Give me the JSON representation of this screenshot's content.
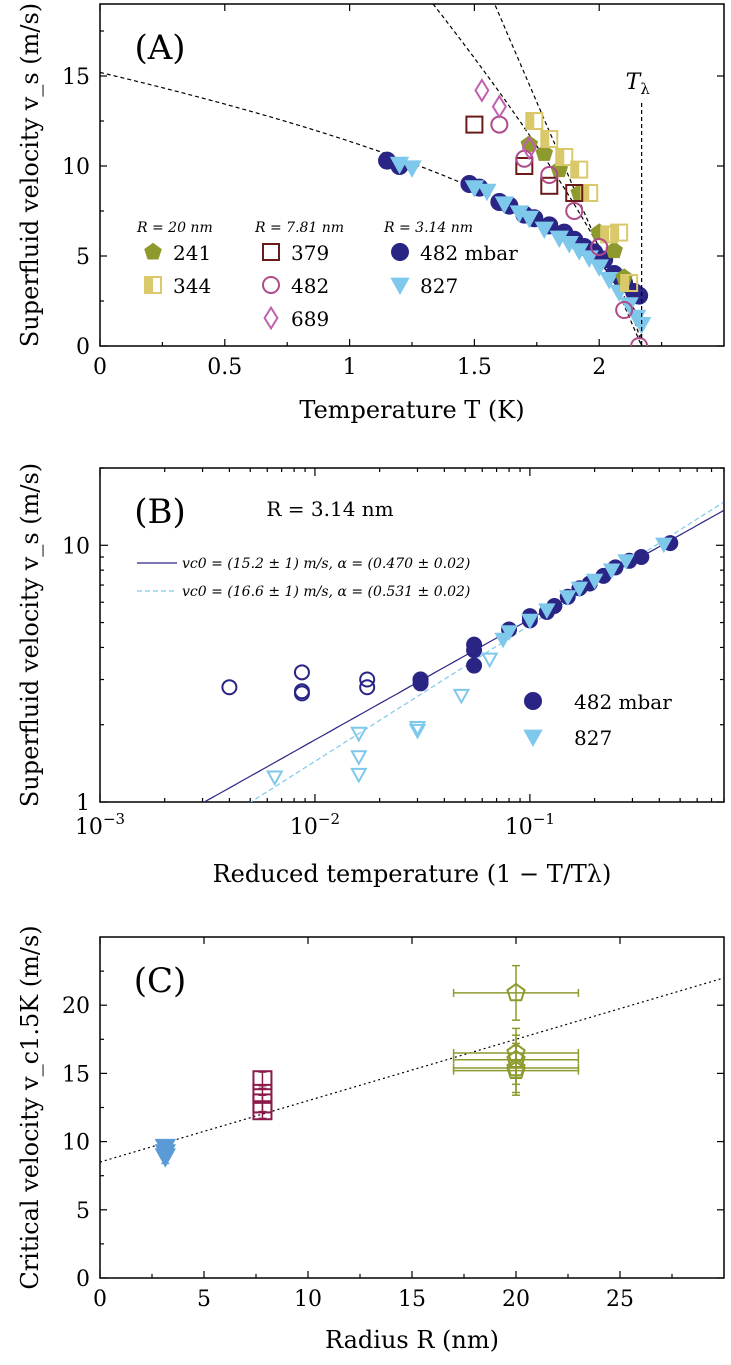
{
  "chart_data": [
    {
      "type": "scatter",
      "panel_label": "(A)",
      "xlabel": "Temperature T (K)",
      "ylabel": "Superfluid velocity v_s (m/s)",
      "xlim": [
        0,
        2.5
      ],
      "ylim": [
        0,
        19
      ],
      "xticks": [
        0,
        0.5,
        1,
        1.5,
        2
      ],
      "xtick_labels": [
        "0",
        "0.5",
        "1",
        "1.5",
        "2"
      ],
      "yticks": [
        0,
        5,
        10,
        15
      ],
      "ytick_labels": [
        "0",
        "5",
        "10",
        "15"
      ],
      "annotation": "Tλ",
      "lambda_line_x": 2.17,
      "legend": {
        "groups": [
          {
            "header": "R = 20 nm",
            "entries": [
              {
                "label": "241",
                "marker": "pentagon-filled",
                "color": "#8f9a2e"
              },
              {
                "label": "344",
                "marker": "square-half",
                "color": "#d9c96a"
              }
            ]
          },
          {
            "header": "R = 7.81 nm",
            "entries": [
              {
                "label": "379",
                "marker": "square-open",
                "color": "#6b1a1a"
              },
              {
                "label": "482",
                "marker": "circle-open",
                "color": "#b04a8a"
              },
              {
                "label": "689",
                "marker": "diamond-open",
                "color": "#c060b0"
              }
            ]
          },
          {
            "header": "R = 3.14 nm",
            "entries": [
              {
                "label": "482 mbar",
                "marker": "circle-filled",
                "color": "#2a2585"
              },
              {
                "label": "827",
                "marker": "triangle-filled",
                "color": "#7ec8ec"
              }
            ]
          }
        ]
      },
      "series": [
        {
          "name": "R=3.14 nm, 482 mbar",
          "marker": "circle-filled",
          "color": "#2a2585",
          "x": [
            1.15,
            1.2,
            1.48,
            1.52,
            1.6,
            1.64,
            1.7,
            1.74,
            1.8,
            1.86,
            1.9,
            1.94,
            1.98,
            2.02,
            2.06,
            2.1,
            2.14,
            2.16
          ],
          "y": [
            10.3,
            10.0,
            9.0,
            8.8,
            8.0,
            7.8,
            7.3,
            7.1,
            6.7,
            6.3,
            5.9,
            5.5,
            5.2,
            4.8,
            4.0,
            3.5,
            3.0,
            2.8
          ]
        },
        {
          "name": "R=3.14 nm, 827",
          "marker": "triangle-filled",
          "color": "#7ec8ec",
          "x": [
            1.2,
            1.25,
            1.5,
            1.55,
            1.62,
            1.68,
            1.72,
            1.78,
            1.84,
            1.88,
            1.92,
            1.96,
            2.0,
            2.04,
            2.08,
            2.12,
            2.15,
            2.17
          ],
          "y": [
            10.1,
            9.9,
            8.8,
            8.6,
            7.9,
            7.4,
            7.1,
            6.5,
            6.0,
            5.7,
            5.3,
            4.9,
            4.4,
            3.7,
            3.0,
            2.3,
            1.6,
            1.2
          ]
        },
        {
          "name": "R=20 nm, 241",
          "marker": "pentagon-filled",
          "color": "#8f9a2e",
          "x": [
            1.72,
            1.78,
            1.84,
            1.92,
            2.0,
            2.06,
            2.1
          ],
          "y": [
            11.2,
            10.7,
            9.8,
            8.5,
            6.3,
            5.3,
            3.8
          ]
        },
        {
          "name": "R=20 nm, 344",
          "marker": "square-half",
          "color": "#d9c96a",
          "x": [
            1.74,
            1.8,
            1.86,
            1.92,
            1.96,
            2.04,
            2.08,
            2.12
          ],
          "y": [
            12.5,
            11.5,
            10.5,
            9.8,
            8.5,
            6.2,
            6.3,
            3.5
          ]
        },
        {
          "name": "R=7.81 nm, 379",
          "marker": "square-open",
          "color": "#6b1a1a",
          "x": [
            1.5,
            1.7,
            1.8,
            1.9
          ],
          "y": [
            12.3,
            10.0,
            8.9,
            8.5
          ]
        },
        {
          "name": "R=7.81 nm, 482",
          "marker": "circle-open",
          "color": "#b04a8a",
          "x": [
            1.6,
            1.7,
            1.8,
            1.9,
            2.0,
            2.1,
            2.16
          ],
          "y": [
            12.3,
            10.4,
            9.5,
            7.5,
            5.5,
            2.0,
            0.0
          ]
        },
        {
          "name": "R=7.81 nm, 689",
          "marker": "diamond-open",
          "color": "#c060b0",
          "x": [
            1.53,
            1.6,
            1.72
          ],
          "y": [
            14.2,
            13.3,
            11.0
          ]
        }
      ],
      "fit_curves": [
        {
          "v0": 15.2,
          "alpha": 0.47,
          "Tlambda": 2.17
        },
        {
          "v0": 40,
          "alpha": 0.78,
          "Tlambda": 2.17
        },
        {
          "v0": 70,
          "alpha": 1.0,
          "Tlambda": 2.17
        }
      ]
    },
    {
      "type": "scatter",
      "panel_label": "(B)",
      "title": "R = 3.14 nm",
      "xscale": "log",
      "yscale": "log",
      "xlabel": "Reduced temperature (1 − T/Tλ)",
      "ylabel": "Superfluid velocity v_s (m/s)",
      "xlim": [
        0.001,
        0.8
      ],
      "ylim": [
        1,
        20
      ],
      "xtick_labels": [
        "10−3",
        "10−2",
        "10−1"
      ],
      "ytick_labels": [
        "1",
        "10"
      ],
      "legend_fits": [
        {
          "label": "vc0 = (15.2 ± 1) m/s, α = (0.470 ± 0.02)",
          "color": "#2a2585",
          "style": "solid",
          "v0": 15.2,
          "alpha": 0.47
        },
        {
          "label": "vc0 = (16.6 ± 1) m/s, α = (0.531 ± 0.02)",
          "color": "#7ec8ec",
          "style": "dashed",
          "v0": 16.6,
          "alpha": 0.531
        }
      ],
      "legend_markers": [
        {
          "label": "482 mbar",
          "marker": "circle-filled",
          "color": "#2a2585"
        },
        {
          "label": "827",
          "marker": "triangle-filled",
          "color": "#7ec8ec"
        }
      ],
      "series": [
        {
          "name": "482 filled",
          "marker": "circle-filled",
          "color": "#2a2585",
          "x": [
            0.031,
            0.031,
            0.055,
            0.055,
            0.055,
            0.08,
            0.1,
            0.1,
            0.12,
            0.13,
            0.15,
            0.17,
            0.19,
            0.22,
            0.25,
            0.29,
            0.33,
            0.45
          ],
          "y": [
            3.0,
            2.9,
            4.1,
            3.9,
            3.4,
            4.7,
            5.3,
            5.1,
            5.5,
            5.8,
            6.3,
            6.8,
            7.1,
            7.6,
            8.2,
            8.7,
            9.0,
            10.2
          ]
        },
        {
          "name": "482 open",
          "marker": "circle-open",
          "color": "#2a2585",
          "x": [
            0.004,
            0.0087,
            0.0087,
            0.0087,
            0.0175,
            0.0175,
            0.031
          ],
          "y": [
            2.8,
            3.2,
            2.7,
            2.65,
            3.0,
            2.8,
            3.0
          ]
        },
        {
          "name": "827 filled",
          "marker": "triangle-filled",
          "color": "#7ec8ec",
          "x": [
            0.075,
            0.08,
            0.1,
            0.12,
            0.15,
            0.17,
            0.2,
            0.24,
            0.28,
            0.42
          ],
          "y": [
            4.3,
            4.6,
            5.1,
            5.6,
            6.3,
            6.8,
            7.3,
            8.0,
            8.7,
            10.1
          ]
        },
        {
          "name": "827 open",
          "marker": "triangle-open",
          "color": "#7ec8ec",
          "x": [
            0.0065,
            0.016,
            0.016,
            0.016,
            0.03,
            0.03,
            0.048,
            0.065
          ],
          "y": [
            1.25,
            1.85,
            1.5,
            1.28,
            1.95,
            1.9,
            2.6,
            3.6
          ]
        }
      ]
    },
    {
      "type": "scatter",
      "panel_label": "(C)",
      "xlabel": "Radius R (nm)",
      "ylabel": "Critical velocity v_c1.5K (m/s)",
      "xlim": [
        0,
        30
      ],
      "ylim": [
        0,
        25
      ],
      "xtick_labels": [
        "0",
        "5",
        "10",
        "15",
        "20",
        "25"
      ],
      "ytick_labels": [
        "0",
        "5",
        "10",
        "15",
        "20"
      ],
      "trend_line": {
        "intercept": 8.5,
        "slope": 0.45
      },
      "series": [
        {
          "name": "R=3.14 nm",
          "marker": "triangle-filled",
          "color": "#5b9bd5",
          "x": [
            3.14,
            3.14,
            3.14
          ],
          "y": [
            9.6,
            9.2,
            8.9
          ],
          "yerr": [
            0.5,
            0.5,
            0.5
          ]
        },
        {
          "name": "R=7.81 nm",
          "marker": "square-open",
          "color": "#8b1a4a",
          "x": [
            7.81,
            7.81,
            7.81,
            7.81
          ],
          "y": [
            14.5,
            13.5,
            12.8,
            12.3
          ],
          "yerr": [
            0.6,
            0.6,
            0.6,
            0.6
          ]
        },
        {
          "name": "R=20 nm",
          "marker": "pentagon-open",
          "color": "#8f9a2e",
          "x": [
            20,
            20,
            20,
            20,
            20
          ],
          "y": [
            20.9,
            16.5,
            16.0,
            15.4,
            15.2
          ],
          "xerr": [
            3,
            3,
            3,
            3,
            3
          ],
          "yerr": [
            2.0,
            1.8,
            1.8,
            1.8,
            1.8
          ]
        }
      ]
    }
  ]
}
